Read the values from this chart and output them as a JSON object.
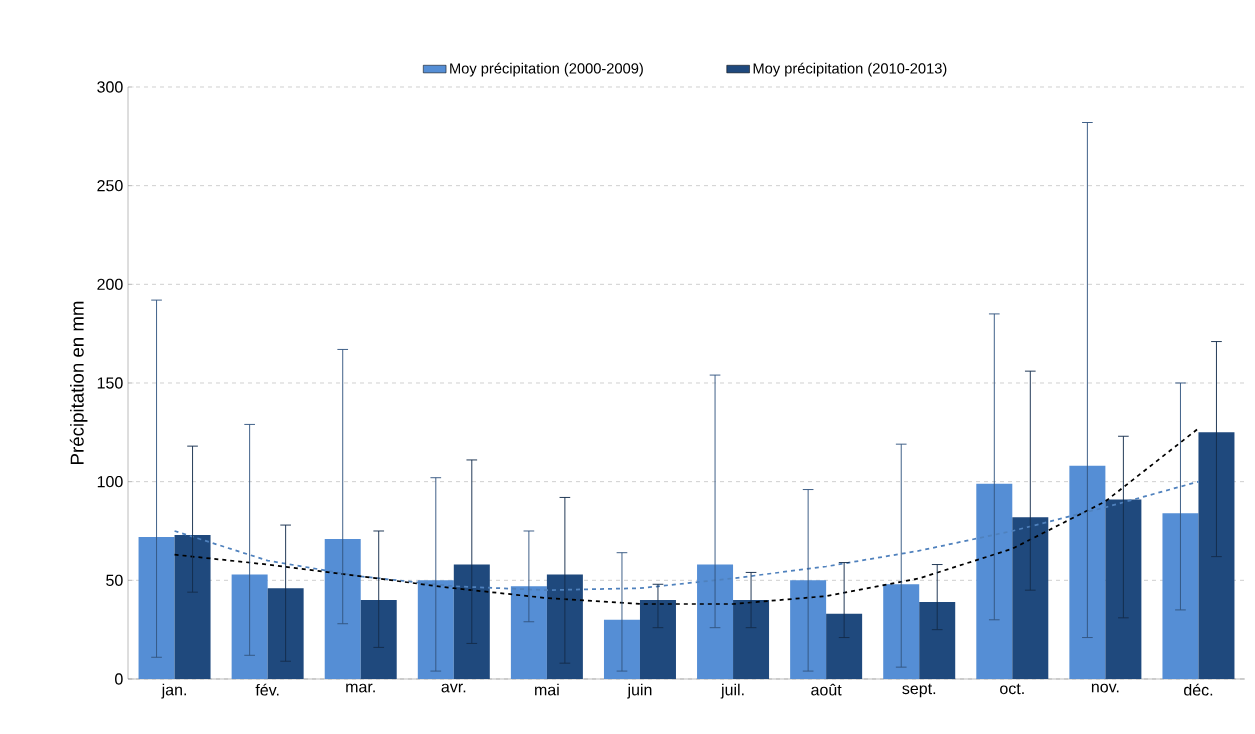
{
  "chart_data": {
    "type": "bar",
    "ylabel": "Précipitation en mm",
    "categories": [
      "jan.",
      "fév.",
      "mar.",
      "avr.",
      "mai",
      "juin",
      "juil.",
      "août",
      "sept.",
      "oct.",
      "nov.",
      "déc."
    ],
    "series": [
      {
        "name": "Moy précipitation (2000-2009)",
        "color": "#558ed5",
        "values": [
          72,
          53,
          71,
          50,
          47,
          30,
          58,
          50,
          48,
          99,
          108,
          84
        ],
        "errors": [
          [
            11,
            192
          ],
          [
            12,
            129
          ],
          [
            28,
            167
          ],
          [
            4,
            102
          ],
          [
            29,
            75
          ],
          [
            4,
            64
          ],
          [
            26,
            154
          ],
          [
            4,
            96
          ],
          [
            6,
            119
          ],
          [
            30,
            185
          ],
          [
            21,
            282
          ],
          [
            35,
            150
          ]
        ]
      },
      {
        "name": "Moy précipitation (2010-2013)",
        "color": "#1f497d",
        "values": [
          73,
          46,
          40,
          58,
          53,
          40,
          40,
          33,
          39,
          82,
          91,
          125
        ],
        "errors": [
          [
            44,
            118
          ],
          [
            9,
            78
          ],
          [
            16,
            75
          ],
          [
            18,
            111
          ],
          [
            8,
            92
          ],
          [
            26,
            48
          ],
          [
            26,
            54
          ],
          [
            21,
            59
          ],
          [
            25,
            58
          ],
          [
            45,
            156
          ],
          [
            31,
            123
          ],
          [
            62,
            171
          ]
        ]
      },
      {
        "type": "line",
        "line_style": "dashed",
        "color": "#4f81bd",
        "values": [
          75,
          60,
          52,
          47,
          45,
          46,
          51,
          57,
          65,
          75,
          87,
          100
        ]
      },
      {
        "type": "line",
        "line_style": "dashed",
        "color": "#000000",
        "values": [
          63,
          58,
          52,
          46,
          41,
          38,
          38,
          42,
          51,
          66,
          90,
          127
        ]
      }
    ],
    "ylim": [
      0,
      300
    ],
    "yticks": [
      0,
      50,
      100,
      150,
      200,
      250,
      300
    ],
    "grid": "y",
    "legend": "top",
    "marker": "none"
  }
}
